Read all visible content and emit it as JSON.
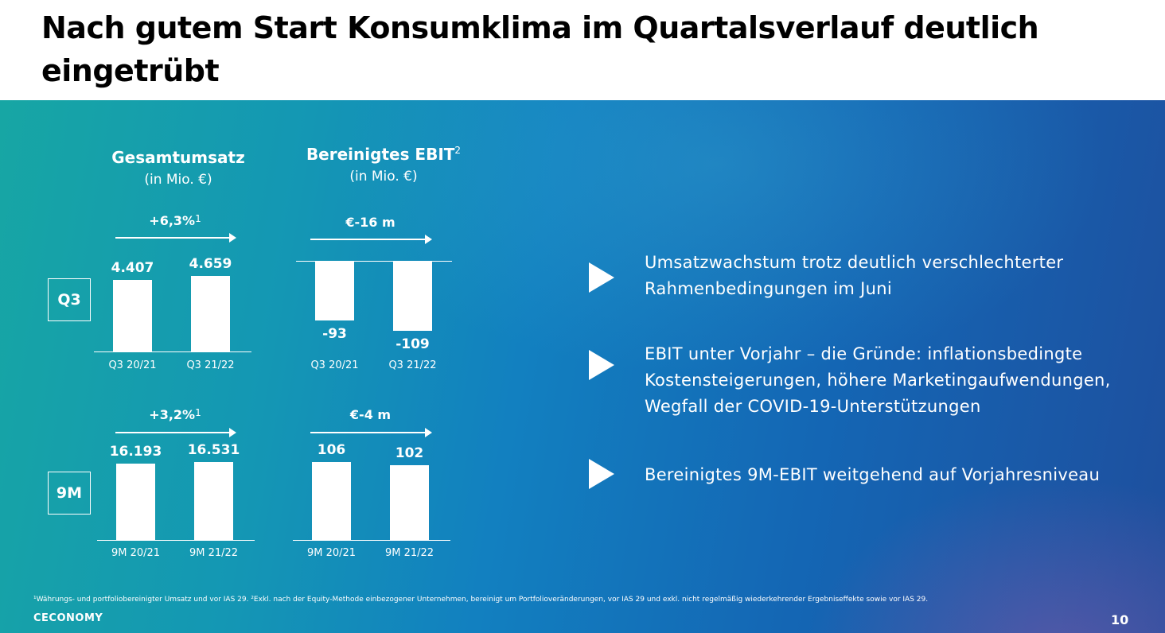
{
  "title": "Nach gutem Start Konsumklima im Quartalsverlauf deutlich eingetrübt",
  "chart_headers": {
    "revenue_title": "Gesamtumsatz",
    "revenue_unit": "(in Mio. €)",
    "ebit_title": "Bereinigtes EBIT",
    "ebit_sup": "2",
    "ebit_unit": "(in Mio. €)"
  },
  "row_labels": {
    "q3": "Q3",
    "nine_m": "9M"
  },
  "chart_data": [
    {
      "type": "bar",
      "title": "Gesamtumsatz",
      "period": "Q3",
      "categories": [
        "Q3 20/21",
        "Q3 21/22"
      ],
      "values": [
        4407,
        4659
      ],
      "labels": [
        "4.407",
        "4.659"
      ],
      "change": "+6,3%",
      "change_sup": "1"
    },
    {
      "type": "bar",
      "title": "Bereinigtes EBIT",
      "period": "Q3",
      "categories": [
        "Q3 20/21",
        "Q3 21/22"
      ],
      "values": [
        -93,
        -109
      ],
      "labels": [
        "-93",
        "-109"
      ],
      "change": "€-16 m",
      "change_sup": ""
    },
    {
      "type": "bar",
      "title": "Gesamtumsatz",
      "period": "9M",
      "categories": [
        "9M 20/21",
        "9M 21/22"
      ],
      "values": [
        16193,
        16531
      ],
      "labels": [
        "16.193",
        "16.531"
      ],
      "change": "+3,2%",
      "change_sup": "1"
    },
    {
      "type": "bar",
      "title": "Bereinigtes EBIT",
      "period": "9M",
      "categories": [
        "9M 20/21",
        "9M 21/22"
      ],
      "values": [
        106,
        102
      ],
      "labels": [
        "106",
        "102"
      ],
      "change": "€-4 m",
      "change_sup": ""
    }
  ],
  "bullets": [
    "Umsatzwachstum trotz deutlich verschlechterter Rahmenbedingungen im Juni",
    "EBIT unter Vorjahr – die Gründe: inflationsbedingte Kostensteigerungen, höhere Marketingaufwendungen, Wegfall der COVID-19-Unterstützungen",
    "Bereinigtes 9M-EBIT weitgehend auf Vorjahresniveau"
  ],
  "footnote": "¹Währungs- und portfoliobereinigter Umsatz und vor IAS 29. ²Exkl. nach der Equity-Methode einbezogener Unternehmen, bereinigt um Portfolioveränderungen, vor IAS 29 und exkl. nicht regelmäßig wiederkehrender Ergebniseffekte sowie vor IAS 29.",
  "logo": "CECONOMY",
  "page_number": "10",
  "colors": {
    "bar": "#ffffff",
    "text_on_panel": "#ffffff",
    "gradient_left": "#17a6a4",
    "gradient_right": "#1e4f9e"
  }
}
